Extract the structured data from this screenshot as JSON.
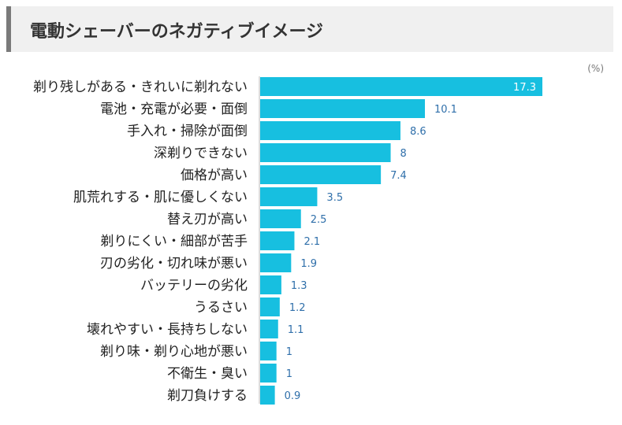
{
  "header": {
    "title": "電動シェーバーのネガティブイメージ"
  },
  "chart_data": {
    "type": "bar",
    "orientation": "horizontal",
    "unit_label": "(%)",
    "categories": [
      "剃り残しがある・きれいに剃れない",
      "電池・充電が必要・面倒",
      "手入れ・掃除が面倒",
      "深剃りできない",
      "価格が高い",
      "肌荒れする・肌に優しくない",
      "替え刃が高い",
      "剃りにくい・細部が苦手",
      "刃の劣化・切れ味が悪い",
      "バッテリーの劣化",
      "うるさい",
      "壊れやすい・長持ちしない",
      "剃り味・剃り心地が悪い",
      "不衛生・臭い",
      "剃刀負けする"
    ],
    "values": [
      17.3,
      10.1,
      8.6,
      8,
      7.4,
      3.5,
      2.5,
      2.1,
      1.9,
      1.3,
      1.2,
      1.1,
      1,
      1,
      0.9
    ],
    "value_labels": [
      "17.3",
      "10.1",
      "8.6",
      "8",
      "7.4",
      "3.5",
      "2.5",
      "2.1",
      "1.9",
      "1.3",
      "1.2",
      "1.1",
      "1",
      "1",
      "0.9"
    ],
    "xlim": [
      0,
      17.3
    ],
    "grid": false,
    "colors": {
      "bar": "#17bfe0",
      "value_label": "#2f6faa",
      "value_label_inside": "#ffffff",
      "category_label": "#222222",
      "axis_line": "#bbbbbb",
      "unit_label": "#777777"
    }
  }
}
